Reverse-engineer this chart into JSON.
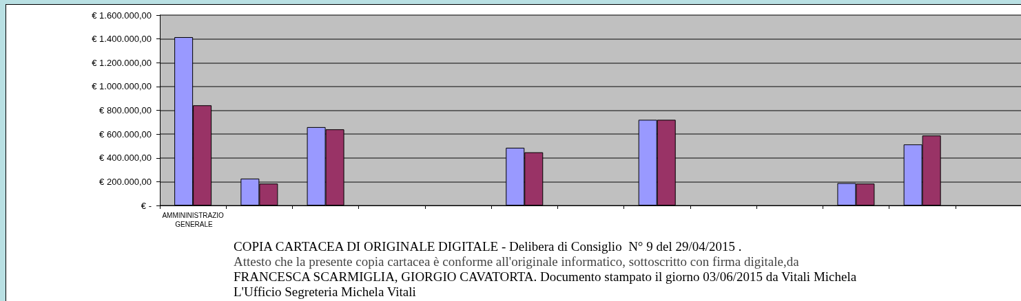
{
  "chart_data": {
    "type": "bar",
    "categories": [
      "AMMININISTRAZIO GENERALE",
      null,
      null,
      null,
      null,
      null,
      null,
      null,
      null,
      null,
      null,
      null,
      null
    ],
    "series": [
      {
        "color": "#9999ff",
        "values": [
          1415000,
          226000,
          659000,
          null,
          null,
          485000,
          null,
          720000,
          null,
          null,
          188000,
          513000,
          null
        ]
      },
      {
        "color": "#993366",
        "values": [
          842000,
          184000,
          640000,
          null,
          null,
          447000,
          null,
          720000,
          null,
          null,
          184000,
          588000,
          null
        ]
      }
    ],
    "ylim": [
      0,
      1600000
    ],
    "yticks": [
      {
        "value": 0,
        "label": "€ -"
      },
      {
        "value": 200000,
        "label": "€ 200.000,00"
      },
      {
        "value": 400000,
        "label": "€ 400.000,00"
      },
      {
        "value": 600000,
        "label": "€ 600.000,00"
      },
      {
        "value": 800000,
        "label": "€ 800.000,00"
      },
      {
        "value": 1000000,
        "label": "€ 1.000.000,00"
      },
      {
        "value": 1200000,
        "label": "€ 1.200.000,00"
      },
      {
        "value": 1400000,
        "label": "€ 1.400.000,00"
      },
      {
        "value": 1600000,
        "label": "€ 1.600.000,00"
      }
    ],
    "grid": "y",
    "annotations": [
      "COPIA CARTACEA DI ORIGINALE DIGITALE - Delibera di Consiglio  N° 9 del 29/04/2015 .",
      "Attesto che la presente copia cartacea è conforme all'originale informatico, sottoscritto con firma digitale,da",
      "FRANCESCA SCARMIGLIA, GIORGIO CAVATORTA. Documento stampato il giorno 03/06/2015 da Vitali Michela",
      "L'Ufficio Segreteria Michela Vitali"
    ]
  }
}
